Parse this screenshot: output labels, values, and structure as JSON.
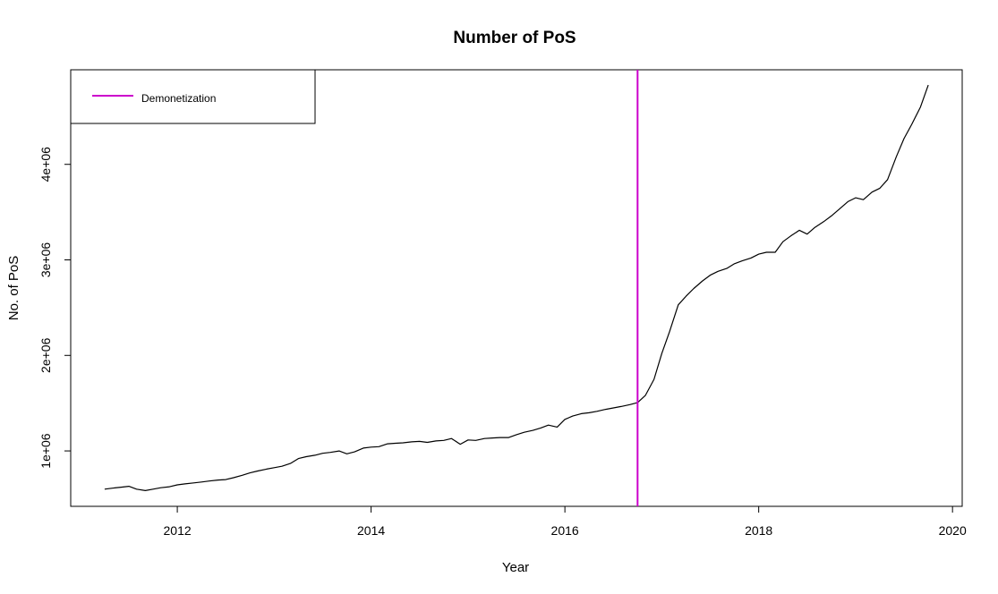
{
  "chart_data": {
    "type": "line",
    "title": "Number of PoS",
    "xlabel": "Year",
    "ylabel": "No. of PoS",
    "xlim": [
      2010.9,
      2020.1
    ],
    "ylim": [
      420000,
      4990000
    ],
    "x_ticks": [
      2012,
      2014,
      2016,
      2018,
      2020
    ],
    "x_tick_labels": [
      "2012",
      "2014",
      "2016",
      "2018",
      "2020"
    ],
    "y_ticks": [
      1000000,
      2000000,
      3000000,
      4000000
    ],
    "y_tick_labels": [
      "1e+06",
      "2e+06",
      "3e+06",
      "4e+06"
    ],
    "grid": false,
    "legend": {
      "position": "top-left",
      "entries": [
        {
          "label": "Demonetization",
          "color": "#cc00cc"
        }
      ]
    },
    "annotations": [
      {
        "type": "vline",
        "x": 2016.75,
        "color": "#cc00cc",
        "label": "Demonetization"
      }
    ],
    "series": [
      {
        "color": "#000000",
        "x": [
          2011.25,
          2011.33,
          2011.42,
          2011.5,
          2011.58,
          2011.67,
          2011.75,
          2011.83,
          2011.92,
          2012.0,
          2012.08,
          2012.17,
          2012.25,
          2012.33,
          2012.42,
          2012.5,
          2012.58,
          2012.67,
          2012.75,
          2012.83,
          2012.92,
          2013.0,
          2013.08,
          2013.17,
          2013.25,
          2013.33,
          2013.42,
          2013.5,
          2013.58,
          2013.67,
          2013.75,
          2013.83,
          2013.92,
          2014.0,
          2014.08,
          2014.17,
          2014.25,
          2014.33,
          2014.42,
          2014.5,
          2014.58,
          2014.67,
          2014.75,
          2014.83,
          2014.92,
          2015.0,
          2015.08,
          2015.17,
          2015.25,
          2015.33,
          2015.42,
          2015.5,
          2015.58,
          2015.67,
          2015.75,
          2015.83,
          2015.92,
          2016.0,
          2016.08,
          2016.17,
          2016.25,
          2016.33,
          2016.42,
          2016.5,
          2016.58,
          2016.67,
          2016.75,
          2016.83,
          2016.92,
          2017.0,
          2017.08,
          2017.17,
          2017.25,
          2017.33,
          2017.42,
          2017.5,
          2017.58,
          2017.67,
          2017.75,
          2017.83,
          2017.92,
          2018.0,
          2018.08,
          2018.17,
          2018.25,
          2018.33,
          2018.42,
          2018.5,
          2018.58,
          2018.67,
          2018.75,
          2018.83,
          2018.92,
          2019.0,
          2019.08,
          2019.17,
          2019.25,
          2019.33,
          2019.42,
          2019.5,
          2019.58,
          2019.67,
          2019.75
        ],
        "y": [
          600000,
          610000,
          620000,
          630000,
          600000,
          585000,
          600000,
          615000,
          625000,
          645000,
          655000,
          665000,
          675000,
          685000,
          695000,
          700000,
          720000,
          745000,
          770000,
          790000,
          810000,
          825000,
          840000,
          870000,
          920000,
          940000,
          955000,
          975000,
          985000,
          1000000,
          970000,
          990000,
          1030000,
          1040000,
          1045000,
          1075000,
          1080000,
          1085000,
          1095000,
          1100000,
          1090000,
          1105000,
          1110000,
          1130000,
          1070000,
          1115000,
          1110000,
          1130000,
          1135000,
          1140000,
          1140000,
          1170000,
          1195000,
          1215000,
          1240000,
          1270000,
          1250000,
          1330000,
          1365000,
          1390000,
          1400000,
          1415000,
          1435000,
          1450000,
          1465000,
          1485000,
          1505000,
          1580000,
          1750000,
          2020000,
          2250000,
          2530000,
          2620000,
          2700000,
          2780000,
          2840000,
          2880000,
          2910000,
          2960000,
          2990000,
          3020000,
          3060000,
          3080000,
          3080000,
          3190000,
          3250000,
          3310000,
          3270000,
          3340000,
          3400000,
          3460000,
          3530000,
          3610000,
          3650000,
          3630000,
          3710000,
          3750000,
          3840000,
          4080000,
          4270000,
          4420000,
          4600000,
          4830000
        ]
      }
    ]
  }
}
